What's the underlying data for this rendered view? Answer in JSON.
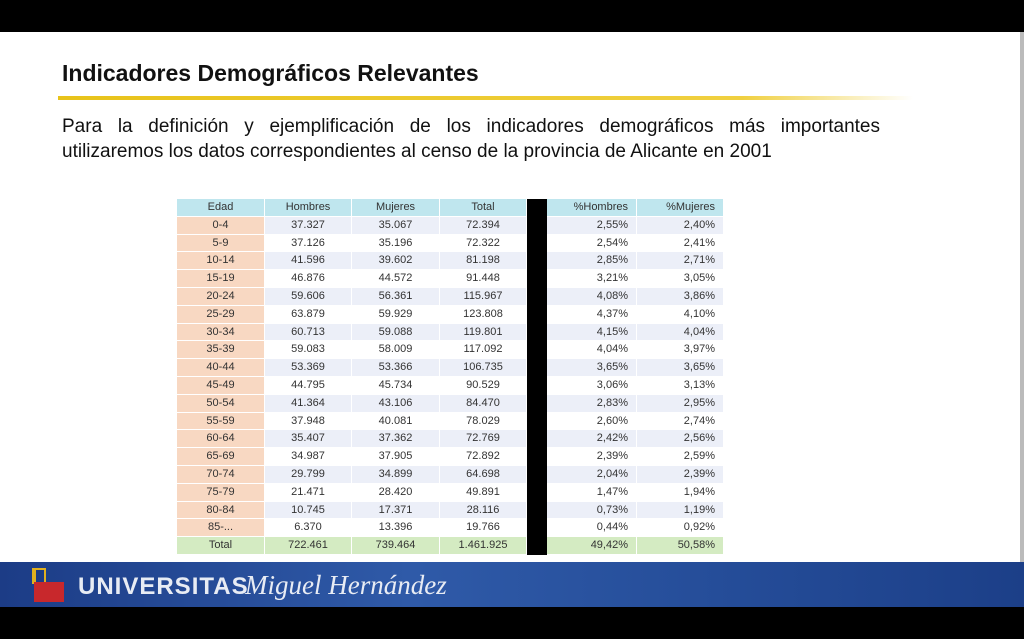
{
  "slide": {
    "title": "Indicadores Demográficos Relevantes",
    "paragraph": "Para la definición y ejemplificación de los indicadores demográficos más importantes utilizaremos los datos correspondientes al censo de la provincia de Alicante en 2001",
    "table": {
      "header": [
        "Edad",
        "Hombres",
        "Mujeres",
        "Total",
        "%Hombres",
        "%Mujeres"
      ],
      "rows": [
        [
          "0-4",
          "37.327",
          "35.067",
          "72.394",
          "2,55%",
          "2,40%"
        ],
        [
          "5-9",
          "37.126",
          "35.196",
          "72.322",
          "2,54%",
          "2,41%"
        ],
        [
          "10-14",
          "41.596",
          "39.602",
          "81.198",
          "2,85%",
          "2,71%"
        ],
        [
          "15-19",
          "46.876",
          "44.572",
          "91.448",
          "3,21%",
          "3,05%"
        ],
        [
          "20-24",
          "59.606",
          "56.361",
          "115.967",
          "4,08%",
          "3,86%"
        ],
        [
          "25-29",
          "63.879",
          "59.929",
          "123.808",
          "4,37%",
          "4,10%"
        ],
        [
          "30-34",
          "60.713",
          "59.088",
          "119.801",
          "4,15%",
          "4,04%"
        ],
        [
          "35-39",
          "59.083",
          "58.009",
          "117.092",
          "4,04%",
          "3,97%"
        ],
        [
          "40-44",
          "53.369",
          "53.366",
          "106.735",
          "3,65%",
          "3,65%"
        ],
        [
          "45-49",
          "44.795",
          "45.734",
          "90.529",
          "3,06%",
          "3,13%"
        ],
        [
          "50-54",
          "41.364",
          "43.106",
          "84.470",
          "2,83%",
          "2,95%"
        ],
        [
          "55-59",
          "37.948",
          "40.081",
          "78.029",
          "2,60%",
          "2,74%"
        ],
        [
          "60-64",
          "35.407",
          "37.362",
          "72.769",
          "2,42%",
          "2,56%"
        ],
        [
          "65-69",
          "34.987",
          "37.905",
          "72.892",
          "2,39%",
          "2,59%"
        ],
        [
          "70-74",
          "29.799",
          "34.899",
          "64.698",
          "2,04%",
          "2,39%"
        ],
        [
          "75-79",
          "21.471",
          "28.420",
          "49.891",
          "1,47%",
          "1,94%"
        ],
        [
          "80-84",
          "10.745",
          "17.371",
          "28.116",
          "0,73%",
          "1,19%"
        ],
        [
          "85-...",
          "6.370",
          "13.396",
          "19.766",
          "0,44%",
          "0,92%"
        ]
      ],
      "total": [
        "Total",
        "722.461",
        "739.464",
        "1.461.925",
        "49,42%",
        "50,58%"
      ]
    }
  },
  "footer": {
    "university": "UNIVERSITAS",
    "name": "Miguel Hernández"
  }
}
